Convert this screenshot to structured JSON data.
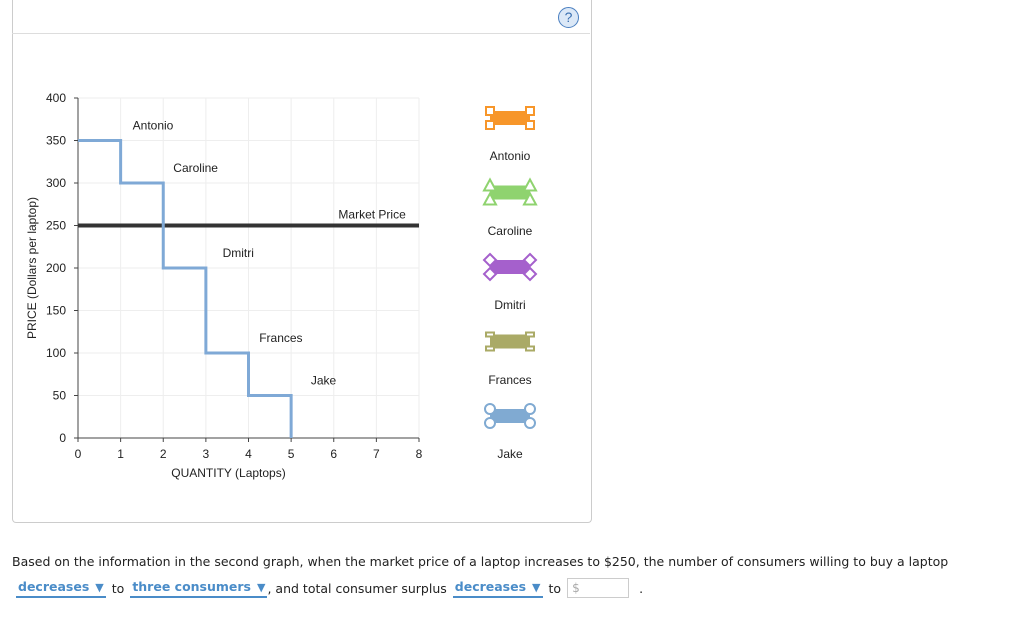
{
  "help_icon": "?",
  "chart_data": {
    "type": "line",
    "xlabel": "QUANTITY (Laptops)",
    "ylabel": "PRICE (Dollars per laptop)",
    "xlim": [
      0,
      8
    ],
    "ylim": [
      0,
      400
    ],
    "xticks": [
      0,
      1,
      2,
      3,
      4,
      5,
      6,
      7,
      8
    ],
    "yticks": [
      0,
      50,
      100,
      150,
      200,
      250,
      300,
      350,
      400
    ],
    "grid": true,
    "demand_steps": [
      {
        "name": "Antonio",
        "from": 0,
        "to": 1,
        "price": 350
      },
      {
        "name": "Caroline",
        "from": 1,
        "to": 2,
        "price": 300
      },
      {
        "name": "Dmitri",
        "from": 2,
        "to": 3,
        "price": 200
      },
      {
        "name": "Frances",
        "from": 3,
        "to": 4,
        "price": 100
      },
      {
        "name": "Jake",
        "from": 4,
        "to": 5,
        "price": 50
      }
    ],
    "demand_color": "#7fa9d6",
    "market_price": {
      "label": "Market Price",
      "value": 250,
      "color": "#333333"
    },
    "legend_placement": "right",
    "legend": [
      {
        "name": "Antonio",
        "color": "#f7962a",
        "marker": "square"
      },
      {
        "name": "Caroline",
        "color": "#8fd36f",
        "marker": "triangle"
      },
      {
        "name": "Dmitri",
        "color": "#a560cc",
        "marker": "diamond"
      },
      {
        "name": "Frances",
        "color": "#aaaa66",
        "marker": "dash"
      },
      {
        "name": "Jake",
        "color": "#80aad2",
        "marker": "circle"
      }
    ]
  },
  "question": {
    "text": "Based on the information in the second graph, when the market price of a laptop increases to $250, the number of consumers willing to buy a laptop",
    "dropdown1": "decreases",
    "to1": "to",
    "dropdown2": "three consumers",
    "mid": ", and total consumer surplus",
    "dropdown3": "decreases",
    "to2": "to",
    "input_placeholder": "$",
    "end": "."
  }
}
